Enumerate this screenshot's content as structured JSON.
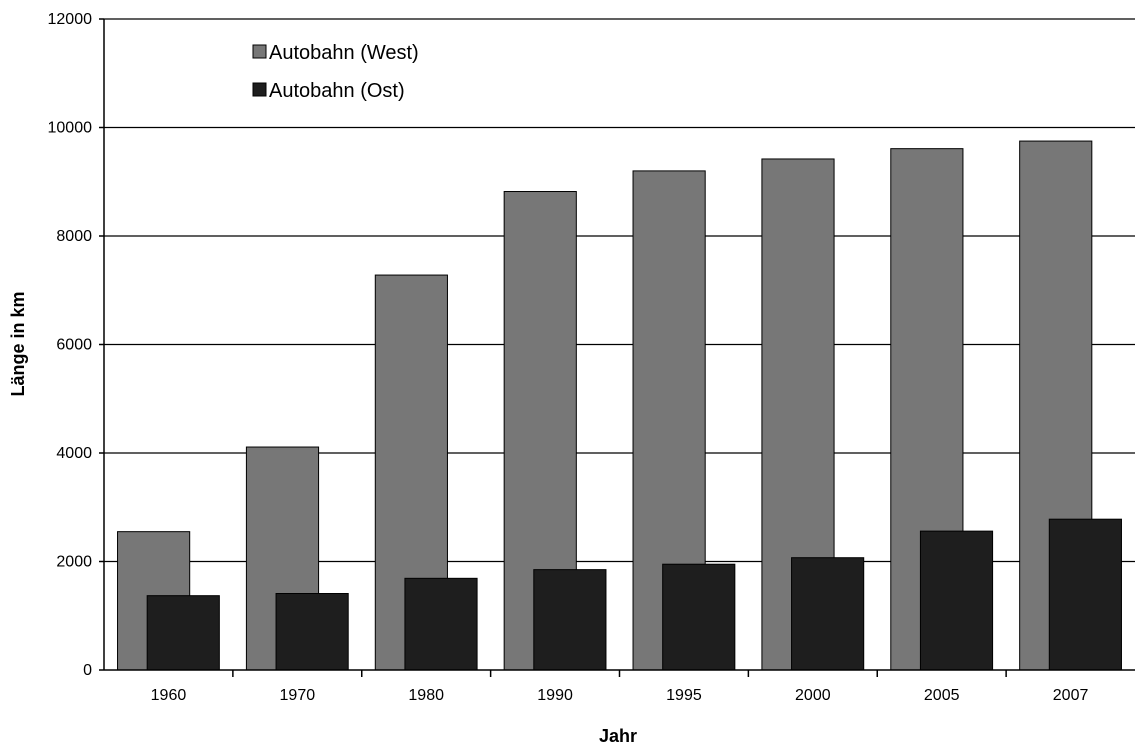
{
  "chart_data": {
    "type": "bar",
    "title": "",
    "xlabel": "Jahr",
    "ylabel": "Länge in km",
    "categories": [
      "1960",
      "1970",
      "1980",
      "1990",
      "1995",
      "2000",
      "2005",
      "2007"
    ],
    "series": [
      {
        "name": "Autobahn (West)",
        "color": "#777777",
        "values": [
          2550,
          4110,
          7280,
          8820,
          9200,
          9420,
          9610,
          9750
        ]
      },
      {
        "name": "Autobahn (Ost)",
        "color": "#1e1e1e",
        "values": [
          1370,
          1410,
          1690,
          1850,
          1950,
          2070,
          2560,
          2780
        ]
      }
    ],
    "ylim": [
      0,
      12000
    ],
    "yticks": [
      "0",
      "2000",
      "4000",
      "6000",
      "8000",
      "10000",
      "12000"
    ],
    "grid": true,
    "legend_position": "top-left"
  }
}
